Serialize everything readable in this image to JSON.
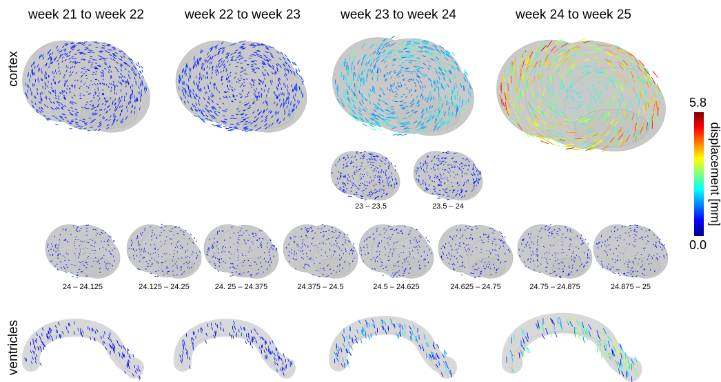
{
  "columns": [
    "week 21 to week 22",
    "week 22 to week 23",
    "week 23 to week 24",
    "week 24 to week 25"
  ],
  "rows": [
    "cortex",
    "ventricles"
  ],
  "substeps_23_24": [
    "23 – 23.5",
    "23.5 – 24"
  ],
  "substeps_24_25": [
    "24 – 24.125",
    "24.125 – 24.25",
    "24. 25 – 24.375",
    "24.375 – 24.5",
    "24.5 – 24.625",
    "24.625 – 24.75",
    "24.75 – 24.875",
    "24.875 – 25"
  ],
  "colorbar": {
    "label": "displacement [mm]",
    "lim": [
      0,
      5.8
    ],
    "ticks": [
      {
        "value": 0,
        "label": "0.0"
      },
      5.8
    ]
  }
}
